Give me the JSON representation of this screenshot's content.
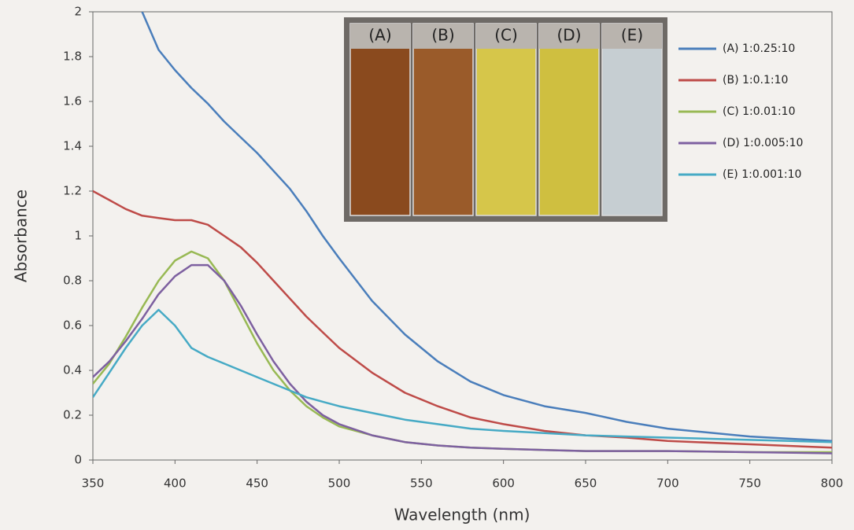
{
  "chart_data": {
    "type": "line",
    "x_label": "Wavelength (nm)",
    "y_label": "Absorbance",
    "x": [
      350,
      360,
      370,
      380,
      390,
      400,
      410,
      420,
      430,
      440,
      450,
      460,
      470,
      480,
      490,
      500,
      520,
      540,
      560,
      580,
      600,
      625,
      650,
      675,
      700,
      750,
      800
    ],
    "series": [
      {
        "name": "(A)  1:0.25:10",
        "color": "#4a7ebb",
        "values": [
          null,
          null,
          null,
          2.0,
          1.83,
          1.74,
          1.66,
          1.59,
          1.51,
          1.44,
          1.37,
          1.29,
          1.21,
          1.11,
          1.0,
          0.9,
          0.71,
          0.56,
          0.44,
          0.35,
          0.29,
          0.24,
          0.21,
          0.17,
          0.14,
          0.105,
          0.085
        ]
      },
      {
        "name": "(B)  1:0.1:10",
        "color": "#be4b48",
        "values": [
          1.2,
          1.16,
          1.12,
          1.09,
          1.08,
          1.07,
          1.07,
          1.05,
          1.0,
          0.95,
          0.88,
          0.8,
          0.72,
          0.64,
          0.57,
          0.5,
          0.39,
          0.3,
          0.24,
          0.19,
          0.16,
          0.13,
          0.11,
          0.1,
          0.085,
          0.07,
          0.055
        ]
      },
      {
        "name": "(C)  1:0.01:10",
        "color": "#98b954",
        "values": [
          0.34,
          0.43,
          0.55,
          0.68,
          0.8,
          0.89,
          0.93,
          0.9,
          0.8,
          0.66,
          0.52,
          0.4,
          0.31,
          0.24,
          0.19,
          0.15,
          0.11,
          0.08,
          0.065,
          0.055,
          0.05,
          0.045,
          0.04,
          0.04,
          0.04,
          0.035,
          0.035
        ]
      },
      {
        "name": "(D)  1:0.005:10",
        "color": "#7d60a0",
        "values": [
          0.37,
          0.44,
          0.53,
          0.63,
          0.74,
          0.82,
          0.87,
          0.87,
          0.8,
          0.69,
          0.56,
          0.44,
          0.34,
          0.26,
          0.2,
          0.16,
          0.11,
          0.08,
          0.065,
          0.055,
          0.05,
          0.045,
          0.04,
          0.04,
          0.04,
          0.035,
          0.03
        ]
      },
      {
        "name": "(E)  1:0.001:10",
        "color": "#46aac5",
        "values": [
          0.28,
          0.39,
          0.5,
          0.6,
          0.67,
          0.6,
          0.5,
          0.46,
          0.43,
          0.4,
          0.37,
          0.34,
          0.31,
          0.28,
          0.26,
          0.24,
          0.21,
          0.18,
          0.16,
          0.14,
          0.13,
          0.12,
          0.11,
          0.105,
          0.1,
          0.09,
          0.08
        ]
      }
    ],
    "xlim": [
      350,
      800
    ],
    "xticks": [
      350,
      400,
      450,
      500,
      550,
      600,
      650,
      700,
      750,
      800
    ],
    "ylim": [
      0,
      2
    ],
    "yticks": [
      0,
      0.2,
      0.4,
      0.6,
      0.8,
      1,
      1.2,
      1.4,
      1.6,
      1.8,
      2
    ],
    "grid": false,
    "legend_position": "upper right"
  },
  "inset": {
    "labels": [
      "(A)",
      "(B)",
      "(C)",
      "(D)",
      "(E)"
    ]
  }
}
